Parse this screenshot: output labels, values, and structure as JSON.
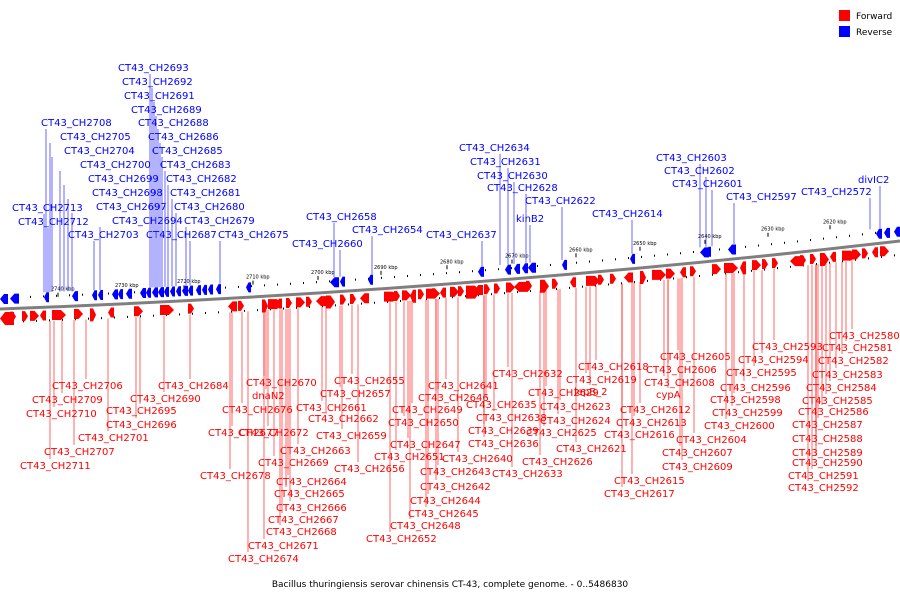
{
  "legend": {
    "forward_label": "Forward",
    "reverse_label": "Reverse",
    "forward_color": "#ff0000",
    "reverse_color": "#0000ff"
  },
  "caption": "Bacillus thuringiensis serovar chinensis CT-43, complete genome. - 0..5486830",
  "scale_ticks": [
    "2740 kbp",
    "2730 kbp",
    "2720 kbp",
    "2710 kbp",
    "2700 kbp",
    "2690 kbp",
    "2680 kbp",
    "2670 kbp",
    "2660 kbp",
    "2650 kbp",
    "2640 kbp",
    "2630 kbp",
    "2620 kbp"
  ],
  "reverse_genes": [
    "CT43_CH2693",
    "CT43_CH2692",
    "CT43_CH2691",
    "CT43_CH2689",
    "CT43_CH2708",
    "CT43_CH2688",
    "CT43_CH2705",
    "CT43_CH2686",
    "CT43_CH2704",
    "CT43_CH2685",
    "CT43_CH2700",
    "CT43_CH2683",
    "CT43_CH2699",
    "CT43_CH2682",
    "CT43_CH2698",
    "CT43_CH2681",
    "CT43_CH2697",
    "CT43_CH2680",
    "CT43_CH2713",
    "CT43_CH2694",
    "CT43_CH2679",
    "CT43_CH2712",
    "CT43_CH2703",
    "CT43_CH2687",
    "CT43_CH2675",
    "CT43_CH2658",
    "CT43_CH2654",
    "CT43_CH2660",
    "CT43_CH2634",
    "CT43_CH2631",
    "CT43_CH2630",
    "CT43_CH2628",
    "CT43_CH2622",
    "kinB2",
    "CT43_CH2637",
    "CT43_CH2614",
    "CT43_CH2603",
    "CT43_CH2602",
    "CT43_CH2601",
    "CT43_CH2597",
    "CT43_CH2572",
    "divIC2"
  ],
  "forward_genes": [
    "CT43_CH2706",
    "CT43_CH2709",
    "CT43_CH2710",
    "CT43_CH2701",
    "CT43_CH2707",
    "CT43_CH2711",
    "CT43_CH2684",
    "CT43_CH2690",
    "CT43_CH2695",
    "CT43_CH2696",
    "CT43_CH2670",
    "dnaN2",
    "CT43_CH2676",
    "CT43_CH2677",
    "CT43_CH2672",
    "CT43_CH2662",
    "CT43_CH2663",
    "CT43_CH2669",
    "CT43_CH2678",
    "CT43_CH2664",
    "CT43_CH2665",
    "CT43_CH2666",
    "CT43_CH2667",
    "CT43_CH2668",
    "CT43_CH2671",
    "CT43_CH2674",
    "CT43_CH2655",
    "CT43_CH2657",
    "CT43_CH2661",
    "CT43_CH2659",
    "CT43_CH2656",
    "CT43_CH2641",
    "CT43_CH2646",
    "CT43_CH2649",
    "CT43_CH2650",
    "CT43_CH2647",
    "CT43_CH2651",
    "CT43_CH2643",
    "CT43_CH2642",
    "CT43_CH2644",
    "CT43_CH2645",
    "CT43_CH2648",
    "CT43_CH2652",
    "CT43_CH2632",
    "CT43_CH2635",
    "CT43_CH2638",
    "CT43_CH2639",
    "CT43_CH2636",
    "CT43_CH2640",
    "CT43_CH2633",
    "CT43_CH2629",
    "lepB_2",
    "CT43_CH2623",
    "CT43_CH2624",
    "CT43_CH2625",
    "CT43_CH2621",
    "CT43_CH2626",
    "CT43_CH2618",
    "CT43_CH2619",
    "CT43_CH2612",
    "CT43_CH2613",
    "CT43_CH2616",
    "CT43_CH2615",
    "CT43_CH2617",
    "cypA",
    "CT43_CH2605",
    "CT43_CH2606",
    "CT43_CH2608",
    "CT43_CH2607",
    "CT43_CH2604",
    "CT43_CH2609",
    "CT43_CH2593",
    "CT43_CH2594",
    "CT43_CH2595",
    "CT43_CH2596",
    "CT43_CH2598",
    "CT43_CH2599",
    "CT43_CH2600",
    "CT43_CH2580",
    "CT43_CH2581",
    "CT43_CH2582",
    "CT43_CH2583",
    "CT43_CH2584",
    "CT43_CH2585",
    "CT43_CH2586",
    "CT43_CH2587",
    "CT43_CH2588",
    "CT43_CH2589",
    "CT43_CH2590",
    "CT43_CH2591",
    "CT43_CH2592"
  ]
}
